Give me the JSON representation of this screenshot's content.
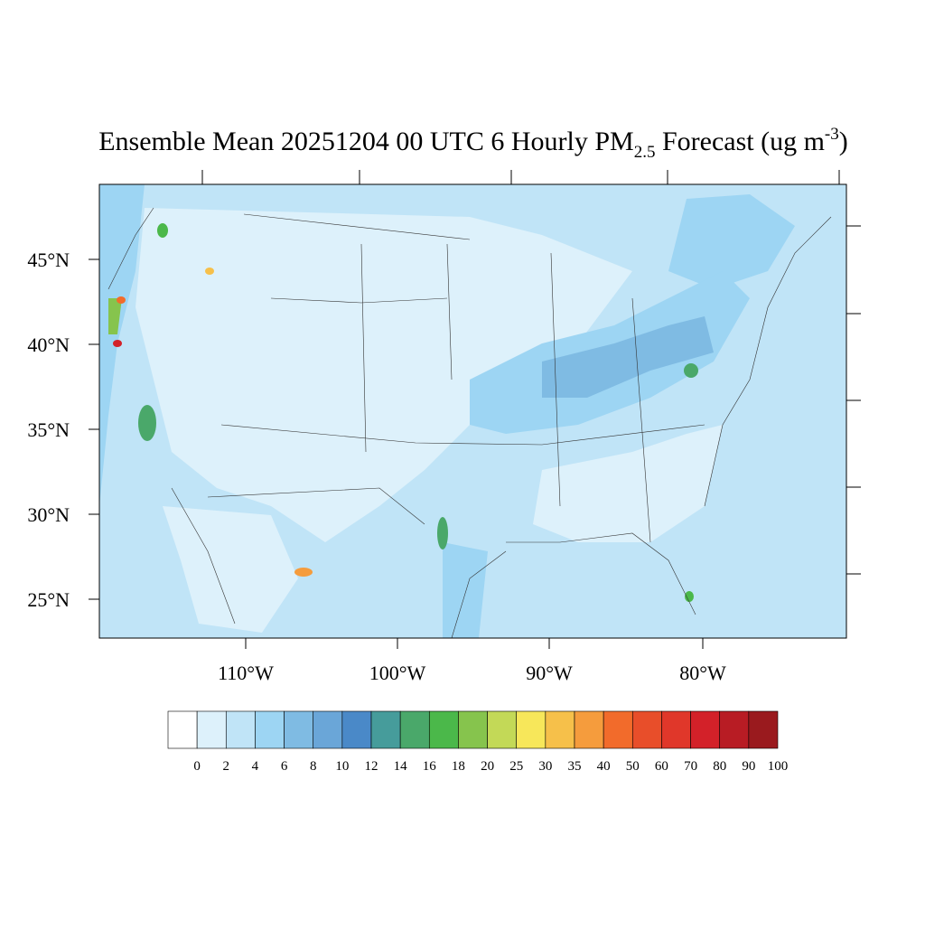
{
  "title": {
    "main": "Ensemble Mean 20251204 00 UTC 6 Hourly PM",
    "subscript": "2.5",
    "middle": " Forecast (ug m",
    "superscript": "-3",
    "end": ")"
  },
  "lat_labels": [
    "45°N",
    "40°N",
    "35°N",
    "30°N",
    "25°N"
  ],
  "lon_labels": [
    "110°W",
    "100°W",
    "90°W",
    "80°W"
  ],
  "colorbar": {
    "labels": [
      "0",
      "2",
      "4",
      "6",
      "8",
      "10",
      "12",
      "14",
      "16",
      "18",
      "20",
      "25",
      "30",
      "35",
      "40",
      "50",
      "60",
      "70",
      "80",
      "90",
      "100"
    ],
    "colors": [
      "#ffffff",
      "#ddf1fb",
      "#c0e4f7",
      "#9dd5f3",
      "#7fbbe3",
      "#6aa6d8",
      "#4a89c8",
      "#469c9b",
      "#4aa86a",
      "#4bb84a",
      "#86c44d",
      "#c3d957",
      "#f7e75a",
      "#f6c04a",
      "#f59c3d",
      "#f26b2b",
      "#e84e2a",
      "#e0372a",
      "#d32129",
      "#b81c24",
      "#9a1a1e"
    ]
  }
}
